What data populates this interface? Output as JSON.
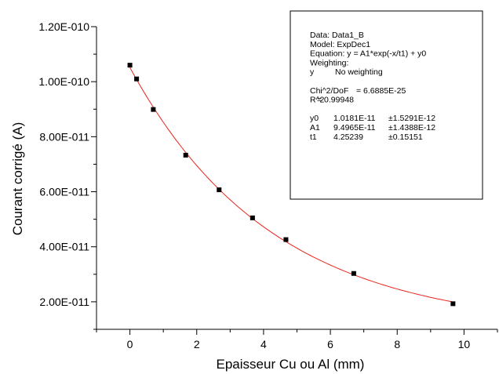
{
  "chart_data": {
    "type": "scatter",
    "xlabel": "Epaisseur Cu ou Al (mm)",
    "ylabel": "Courant corrigé (A)",
    "xlim": [
      -1,
      11
    ],
    "ylim": [
      1e-11,
      1.2e-10
    ],
    "x_ticks": [
      0,
      2,
      4,
      6,
      8,
      10
    ],
    "x_tick_labels": [
      "0",
      "2",
      "4",
      "6",
      "8",
      "10"
    ],
    "y_ticks": [
      2e-11,
      4e-11,
      6e-11,
      8e-11,
      1e-10,
      1.2e-10
    ],
    "y_tick_labels": [
      "2.00E-011",
      "4.00E-011",
      "6.00E-011",
      "8.00E-011",
      "1.00E-010",
      "1.20E-010"
    ],
    "series": [
      {
        "marker": "square",
        "color": "#000000",
        "x": [
          0,
          0.2,
          0.7,
          1.67,
          2.67,
          3.67,
          4.67,
          6.7,
          9.67
        ],
        "y": [
          1.06e-10,
          1.01e-10,
          8.99e-11,
          7.33e-11,
          6.07e-11,
          5.05e-11,
          4.26e-11,
          3.03e-11,
          1.93e-11
        ]
      }
    ],
    "fit_curve": {
      "color": "#e8251e",
      "x_range": [
        0,
        9.67
      ],
      "y0": 1.0181e-11,
      "A1": 9.4965e-11,
      "t1": 4.25239
    },
    "grid": false,
    "legend_box": {
      "placement": "top-right",
      "lines": [
        {
          "a": "Data: Data1_B"
        },
        {
          "a": "Model: ExpDec1"
        },
        {
          "a": "Equation: y = A1*exp(-x/t1) + y0"
        },
        {
          "a": "Weighting:"
        },
        {
          "a": "y",
          "b": "No weighting"
        },
        {
          "a": ""
        },
        {
          "a": "Chi^2/DoF",
          "b": "= 6.6885E-25"
        },
        {
          "a": "R^2",
          "b": "=  0.99948"
        },
        {
          "a": ""
        },
        {
          "a": "y0",
          "b": "1.0181E-11",
          "c": "±1.5291E-12"
        },
        {
          "a": "A1",
          "b": "9.4965E-11",
          "c": "±1.4388E-12"
        },
        {
          "a": "t1",
          "b": "4.25239",
          "c": "±0.15151"
        }
      ]
    }
  }
}
